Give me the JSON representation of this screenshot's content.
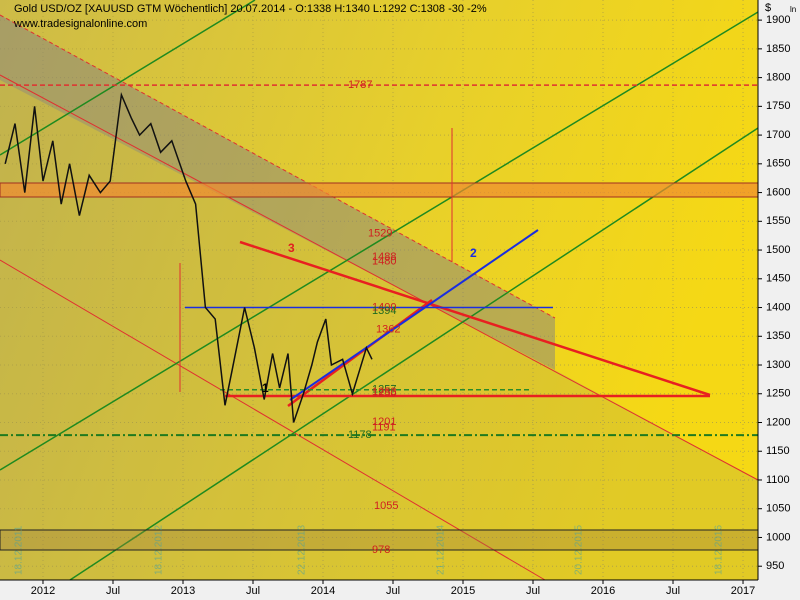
{
  "chart_data": {
    "type": "line",
    "title": "Gold USD/OZ [XAUUSD GTM  Wöchentlich] 20.07.2014 - O:1338 H:1340 L:1292 C:1308 -30 -2%",
    "subtitle": "www.tradesignalonline.com",
    "y_unit": "$",
    "scale_label": "ln",
    "x": [
      2011.73,
      2011.8,
      2011.87,
      2011.94,
      2012.0,
      2012.07,
      2012.13,
      2012.19,
      2012.26,
      2012.33,
      2012.41,
      2012.48,
      2012.56,
      2012.63,
      2012.69,
      2012.77,
      2012.84,
      2012.92,
      2013.02,
      2013.09,
      2013.16,
      2013.23,
      2013.3,
      2013.35,
      2013.44,
      2013.51,
      2013.58,
      2013.64,
      2013.69,
      2013.75,
      2013.79,
      2013.86,
      2013.92,
      2013.96,
      2014.02,
      2014.06,
      2014.14,
      2014.21,
      2014.26,
      2014.31,
      2014.35
    ],
    "values": [
      1650,
      1720,
      1600,
      1750,
      1620,
      1690,
      1580,
      1650,
      1560,
      1630,
      1600,
      1620,
      1770,
      1730,
      1700,
      1720,
      1670,
      1690,
      1620,
      1580,
      1400,
      1380,
      1230,
      1290,
      1400,
      1330,
      1240,
      1320,
      1260,
      1320,
      1200,
      1250,
      1300,
      1340,
      1380,
      1300,
      1310,
      1250,
      1290,
      1330,
      1310
    ],
    "color": "#111111",
    "xlim": [
      2011.693,
      2017.107
    ],
    "ylim": [
      926,
      1935
    ],
    "xticks": [
      2012,
      {
        "value": 2012.5,
        "label": "Jul"
      },
      2013,
      {
        "value": 2013.5,
        "label": "Jul"
      },
      2014,
      {
        "value": 2014.5,
        "label": "Jul"
      },
      2015,
      {
        "value": 2015.5,
        "label": "Jul"
      },
      2016,
      {
        "value": 2016.5,
        "label": "Jul"
      },
      2017
    ],
    "yticks": [
      950,
      1000,
      1050,
      1100,
      1150,
      1200,
      1250,
      1300,
      1350,
      1400,
      1450,
      1500,
      1550,
      1600,
      1650,
      1700,
      1750,
      1800,
      1850,
      1900
    ],
    "grid": true,
    "levels": [
      {
        "value": 1787,
        "color": "#e03030",
        "dashed": true
      },
      {
        "value": 1400,
        "color": "#1a2ee0",
        "dashed": false
      },
      {
        "value": 1257,
        "color": "#2a8a2a",
        "dashed": true
      },
      {
        "value": 1178,
        "color": "#1f7a1f",
        "dashed": true
      }
    ],
    "price_labels": [
      1787,
      1529,
      1488,
      1480,
      1400,
      1394,
      1362,
      1257,
      1253,
      1250,
      1201,
      1191,
      1178,
      1055,
      978
    ],
    "wave_labels": [
      "1",
      "2",
      "3"
    ],
    "cycle_dates": [
      "18.12.2011",
      "18.12.2012",
      "22.12.2013",
      "21.12.2014",
      "20.12.2015",
      "18.12.2016"
    ]
  }
}
